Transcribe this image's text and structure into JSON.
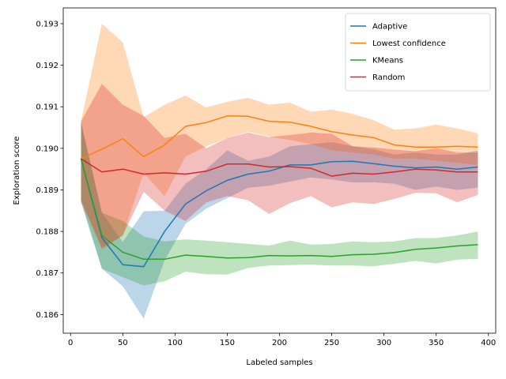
{
  "chart_data": {
    "type": "line",
    "xlabel": "Labeled samples",
    "ylabel": "Exploration score",
    "xlim": [
      -7,
      407
    ],
    "ylim": [
      0.18555,
      0.19338
    ],
    "xticks": [
      0,
      50,
      100,
      150,
      200,
      250,
      300,
      350,
      400
    ],
    "yticks": [
      0.186,
      0.187,
      0.188,
      0.189,
      0.19,
      0.191,
      0.192,
      0.193
    ],
    "grid": false,
    "legend_position": "top-right",
    "x": [
      10,
      30,
      50,
      70,
      90,
      110,
      130,
      150,
      170,
      190,
      210,
      230,
      250,
      270,
      290,
      310,
      330,
      350,
      370,
      390
    ],
    "series": [
      {
        "name": "Adaptive",
        "color": "#1f77b4",
        "values": [
          0.18975,
          0.18785,
          0.1872,
          0.18715,
          0.188,
          0.18866,
          0.18898,
          0.18923,
          0.18938,
          0.18945,
          0.1896,
          0.1896,
          0.18968,
          0.18969,
          0.18963,
          0.18957,
          0.18953,
          0.18955,
          0.1895,
          0.18955
        ],
        "lower": [
          0.1887,
          0.1871,
          0.18668,
          0.1859,
          0.1873,
          0.18818,
          0.18855,
          0.1888,
          0.18905,
          0.1891,
          0.1892,
          0.1893,
          0.18925,
          0.18918,
          0.18918,
          0.18915,
          0.189,
          0.18908,
          0.189,
          0.18905
        ],
        "upper": [
          0.19065,
          0.18845,
          0.18775,
          0.18848,
          0.1885,
          0.18915,
          0.1895,
          0.18995,
          0.1897,
          0.1898,
          0.19005,
          0.1901,
          0.19015,
          0.19005,
          0.18998,
          0.18985,
          0.1899,
          0.18985,
          0.18985,
          0.18995
        ]
      },
      {
        "name": "Lowest confidence",
        "color": "#ff7f0e",
        "values": [
          0.18975,
          0.18998,
          0.19023,
          0.1898,
          0.19008,
          0.19053,
          0.19062,
          0.19078,
          0.19077,
          0.19065,
          0.19063,
          0.19053,
          0.1904,
          0.19032,
          0.19026,
          0.19008,
          0.19003,
          0.19003,
          0.19005,
          0.19003
        ],
        "lower": [
          0.1887,
          0.18755,
          0.1879,
          0.1894,
          0.18885,
          0.1898,
          0.19005,
          0.19025,
          0.1904,
          0.19028,
          0.1902,
          0.1901,
          0.18995,
          0.1899,
          0.18985,
          0.18975,
          0.18975,
          0.1897,
          0.18965,
          0.1896
        ],
        "upper": [
          0.19065,
          0.193,
          0.19255,
          0.19075,
          0.19105,
          0.19127,
          0.19098,
          0.19112,
          0.19122,
          0.19105,
          0.1911,
          0.19088,
          0.19093,
          0.19083,
          0.19068,
          0.19045,
          0.19048,
          0.19057,
          0.19048,
          0.19036
        ]
      },
      {
        "name": "KMeans",
        "color": "#2ca02c",
        "values": [
          0.18975,
          0.1879,
          0.1875,
          0.18733,
          0.18733,
          0.18743,
          0.1874,
          0.18736,
          0.18737,
          0.18742,
          0.18741,
          0.18742,
          0.1874,
          0.18744,
          0.18745,
          0.18749,
          0.18757,
          0.1876,
          0.18765,
          0.18768
        ],
        "lower": [
          0.18875,
          0.1871,
          0.1869,
          0.1867,
          0.1868,
          0.18703,
          0.18697,
          0.18696,
          0.18712,
          0.18718,
          0.18719,
          0.1872,
          0.18718,
          0.18718,
          0.18716,
          0.18722,
          0.18729,
          0.18723,
          0.18732,
          0.18734
        ],
        "upper": [
          0.1906,
          0.18845,
          0.18825,
          0.18788,
          0.18776,
          0.18781,
          0.18778,
          0.18774,
          0.1877,
          0.18766,
          0.18778,
          0.18768,
          0.1877,
          0.18776,
          0.18774,
          0.18776,
          0.18784,
          0.18784,
          0.1879,
          0.188
        ]
      },
      {
        "name": "Random",
        "color": "#d62728",
        "values": [
          0.18975,
          0.18943,
          0.1895,
          0.18938,
          0.18941,
          0.18938,
          0.18945,
          0.18962,
          0.18962,
          0.18955,
          0.18956,
          0.18952,
          0.18933,
          0.1894,
          0.18938,
          0.18943,
          0.1895,
          0.18948,
          0.18943,
          0.18943
        ],
        "lower": [
          0.18875,
          0.1876,
          0.1879,
          0.18895,
          0.1885,
          0.18825,
          0.1887,
          0.18885,
          0.18875,
          0.18842,
          0.18868,
          0.18885,
          0.18858,
          0.1887,
          0.18866,
          0.18878,
          0.18893,
          0.18892,
          0.1887,
          0.18888
        ],
        "upper": [
          0.19065,
          0.19155,
          0.19105,
          0.19078,
          0.19025,
          0.19035,
          0.19,
          0.19025,
          0.19038,
          0.19027,
          0.19032,
          0.19038,
          0.19035,
          0.19005,
          0.19002,
          0.18997,
          0.18993,
          0.19,
          0.1899,
          0.1899
        ]
      }
    ]
  }
}
